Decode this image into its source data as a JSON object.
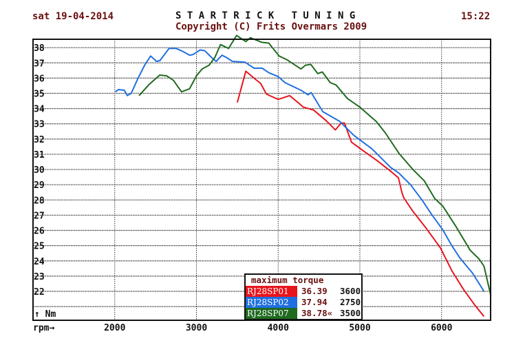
{
  "header": {
    "date": "sat 19-04-2014",
    "title": "S T A R T R I C K   T U N I N G",
    "copyright": "Copyright (C) Frits Overmars 2009",
    "time": "15:22"
  },
  "colors": {
    "text": "#6a1010",
    "grid": "#222222",
    "red": "#e8141c",
    "blue": "#1f6fe0",
    "green": "#1f6a1f"
  },
  "chart_data": {
    "type": "line",
    "title": "maximum torque",
    "xlabel": "rpm→",
    "ylabel": "↑ Nm",
    "xlim": [
      1000,
      6600
    ],
    "ylim": [
      20.1,
      38.55
    ],
    "xticks": [
      2000,
      3000,
      4000,
      5000,
      6000
    ],
    "yticks": [
      22,
      23,
      24,
      25,
      26,
      27,
      28,
      29,
      30,
      31,
      32,
      33,
      34,
      35,
      36,
      37,
      38
    ],
    "ygrid": [
      21,
      22,
      23,
      24,
      25,
      26,
      27,
      28,
      29,
      30,
      31,
      32,
      33,
      34,
      35,
      36,
      37,
      38
    ],
    "grid": true,
    "legend_position": "bottom-center",
    "series": [
      {
        "name": "RJ28SP01",
        "color": "#e8141c",
        "max_torque": "36.39",
        "max_rpm": "3600",
        "marker": "",
        "points": [
          [
            3500,
            34.4
          ],
          [
            3604,
            36.45
          ],
          [
            3716,
            35.95
          ],
          [
            3786,
            35.65
          ],
          [
            3856,
            34.95
          ],
          [
            4000,
            34.6
          ],
          [
            4140,
            34.85
          ],
          [
            4253,
            34.35
          ],
          [
            4306,
            34.1
          ],
          [
            4434,
            33.9
          ],
          [
            4588,
            33.2
          ],
          [
            4700,
            32.6
          ],
          [
            4770,
            33.05
          ],
          [
            4812,
            33.05
          ],
          [
            4896,
            31.8
          ],
          [
            5009,
            31.35
          ],
          [
            5206,
            30.6
          ],
          [
            5374,
            29.9
          ],
          [
            5472,
            29.45
          ],
          [
            5514,
            28.5
          ],
          [
            5536,
            28.15
          ],
          [
            5649,
            27.25
          ],
          [
            5817,
            26.1
          ],
          [
            5986,
            24.85
          ],
          [
            6126,
            23.35
          ],
          [
            6266,
            22.15
          ],
          [
            6406,
            21.1
          ],
          [
            6519,
            20.35
          ]
        ]
      },
      {
        "name": "RJ28SP02",
        "color": "#1f6fe0",
        "max_torque": "37.94",
        "max_rpm": "2750",
        "marker": "",
        "points": [
          [
            2006,
            35.1
          ],
          [
            2048,
            35.25
          ],
          [
            2118,
            35.2
          ],
          [
            2154,
            34.85
          ],
          [
            2202,
            35.0
          ],
          [
            2286,
            36.0
          ],
          [
            2371,
            36.9
          ],
          [
            2440,
            37.45
          ],
          [
            2511,
            37.1
          ],
          [
            2553,
            37.15
          ],
          [
            2665,
            37.95
          ],
          [
            2750,
            37.95
          ],
          [
            2834,
            37.75
          ],
          [
            2918,
            37.5
          ],
          [
            2960,
            37.55
          ],
          [
            3045,
            37.85
          ],
          [
            3101,
            37.8
          ],
          [
            3185,
            37.35
          ],
          [
            3242,
            37.1
          ],
          [
            3312,
            37.5
          ],
          [
            3368,
            37.35
          ],
          [
            3439,
            37.1
          ],
          [
            3593,
            37.05
          ],
          [
            3705,
            36.65
          ],
          [
            3804,
            36.65
          ],
          [
            3888,
            36.35
          ],
          [
            4000,
            36.1
          ],
          [
            4084,
            35.7
          ],
          [
            4281,
            35.2
          ],
          [
            4365,
            34.9
          ],
          [
            4405,
            35.05
          ],
          [
            4545,
            33.8
          ],
          [
            4755,
            33.15
          ],
          [
            4924,
            32.25
          ],
          [
            5149,
            31.35
          ],
          [
            5374,
            30.15
          ],
          [
            5480,
            29.75
          ],
          [
            5620,
            29.0
          ],
          [
            5760,
            28.0
          ],
          [
            5872,
            27.1
          ],
          [
            6013,
            26.05
          ],
          [
            6125,
            25.0
          ],
          [
            6223,
            24.2
          ],
          [
            6378,
            23.2
          ],
          [
            6519,
            22.0
          ]
        ]
      },
      {
        "name": "RJ28SP07",
        "color": "#1f6a1f",
        "max_torque": "38.78«",
        "max_rpm": "3500",
        "marker": "«",
        "points": [
          [
            2298,
            34.85
          ],
          [
            2424,
            35.6
          ],
          [
            2551,
            36.2
          ],
          [
            2635,
            36.15
          ],
          [
            2719,
            35.85
          ],
          [
            2817,
            35.1
          ],
          [
            2916,
            35.3
          ],
          [
            3000,
            36.15
          ],
          [
            3070,
            36.6
          ],
          [
            3155,
            36.85
          ],
          [
            3225,
            37.35
          ],
          [
            3295,
            38.2
          ],
          [
            3393,
            37.95
          ],
          [
            3491,
            38.8
          ],
          [
            3604,
            38.4
          ],
          [
            3660,
            38.65
          ],
          [
            3800,
            38.35
          ],
          [
            3884,
            38.3
          ],
          [
            4011,
            37.45
          ],
          [
            4110,
            37.2
          ],
          [
            4278,
            36.6
          ],
          [
            4335,
            36.85
          ],
          [
            4400,
            36.9
          ],
          [
            4484,
            36.3
          ],
          [
            4540,
            36.4
          ],
          [
            4638,
            35.7
          ],
          [
            4708,
            35.55
          ],
          [
            4849,
            34.65
          ],
          [
            4998,
            34.1
          ],
          [
            5200,
            33.15
          ],
          [
            5312,
            32.4
          ],
          [
            5480,
            31.05
          ],
          [
            5649,
            30.0
          ],
          [
            5789,
            29.25
          ],
          [
            5915,
            28.1
          ],
          [
            6014,
            27.6
          ],
          [
            6182,
            26.2
          ],
          [
            6350,
            24.7
          ],
          [
            6463,
            24.1
          ],
          [
            6519,
            23.65
          ],
          [
            6603,
            21.7
          ]
        ]
      }
    ]
  }
}
